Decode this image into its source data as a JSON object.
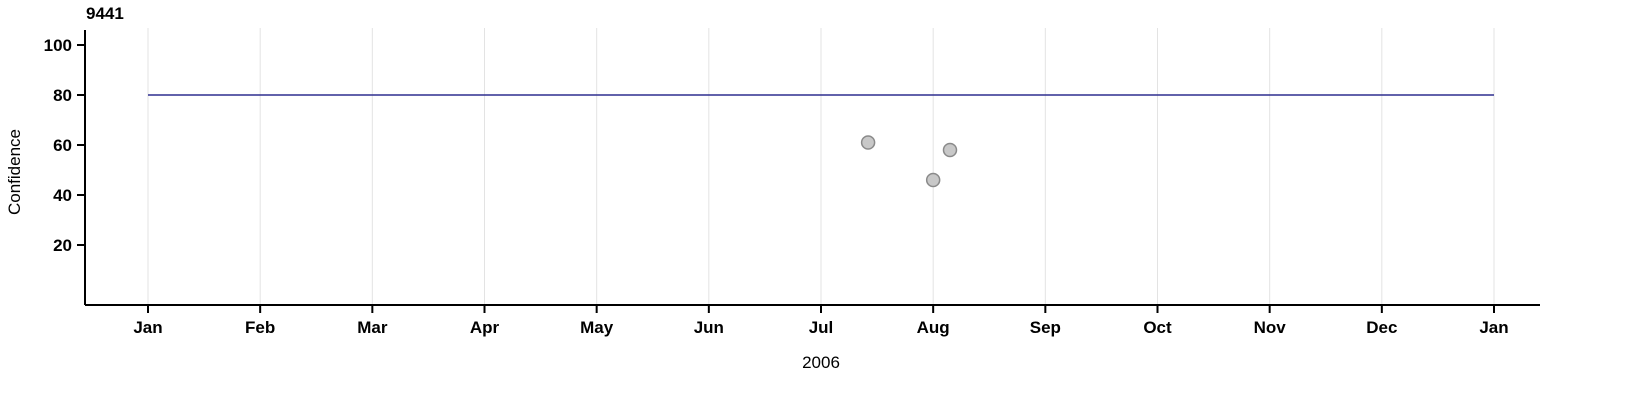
{
  "chart_data": {
    "type": "scatter",
    "title": "9441",
    "xlabel": "2006",
    "ylabel": "Confidence",
    "x_tick_labels": [
      "Jan",
      "Feb",
      "Mar",
      "Apr",
      "May",
      "Jun",
      "Jul",
      "Aug",
      "Sep",
      "Oct",
      "Nov",
      "Dec",
      "Jan"
    ],
    "y_ticks": [
      20,
      40,
      60,
      80,
      100
    ],
    "xlim": [
      0,
      12
    ],
    "ylim": [
      0,
      106
    ],
    "grid": {
      "show": true,
      "direction": "vertical",
      "color": "#e3e3e3"
    },
    "axis_color": "#000000",
    "series": [
      {
        "name": "threshold-line",
        "type": "line",
        "color": "#2f2f8f",
        "width": 1.5,
        "points": [
          {
            "x": 0,
            "y": 80
          },
          {
            "x": 12,
            "y": 80
          }
        ]
      },
      {
        "name": "confidence-points",
        "type": "scatter",
        "fill": "#c8c8c8",
        "stroke": "#8a8a8a",
        "radius": 6.5,
        "points": [
          {
            "x": 6.42,
            "y": 61
          },
          {
            "x": 7.0,
            "y": 46
          },
          {
            "x": 7.15,
            "y": 58
          }
        ]
      }
    ]
  }
}
